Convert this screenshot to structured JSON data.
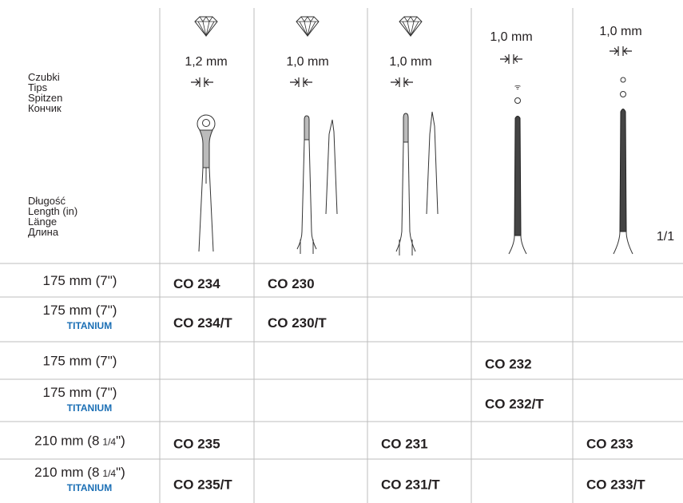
{
  "header": {
    "tips_labels": [
      "Czubki",
      "Tips",
      "Spitzen",
      "Кончик"
    ],
    "length_labels": [
      "Długość",
      "Length (in)",
      "Länge",
      "Длина"
    ],
    "tip_sizes": [
      "1,2 mm",
      "1,0 mm",
      "1,0 mm",
      "1,0 mm",
      "1,0 mm"
    ],
    "scale": "1/1"
  },
  "table": {
    "rows": [
      {
        "length": "175 mm (7\")",
        "cells": [
          "CO 234",
          "CO 230",
          null,
          null,
          null
        ]
      },
      {
        "length": "175 mm (7\")",
        "material": "TITANIUM",
        "cells": [
          "CO 234/T",
          "CO 230/T",
          null,
          null,
          null
        ]
      },
      {
        "length": "175 mm (7\")",
        "cells": [
          null,
          null,
          null,
          "CO 232",
          null
        ]
      },
      {
        "length": "175 mm (7\")",
        "material": "TITANIUM",
        "cells": [
          null,
          null,
          null,
          "CO 232/T",
          null
        ]
      },
      {
        "length": "210 mm (8",
        "fraction": "1/4",
        "suffix": "\")",
        "cells": [
          "CO 235",
          null,
          "CO 231",
          null,
          "CO 233"
        ]
      },
      {
        "length": "210 mm (8",
        "fraction": "1/4",
        "suffix": "\")",
        "material": "TITANIUM",
        "cells": [
          "CO 235/T",
          null,
          "CO 231/T",
          null,
          "CO 233/T"
        ]
      }
    ]
  }
}
